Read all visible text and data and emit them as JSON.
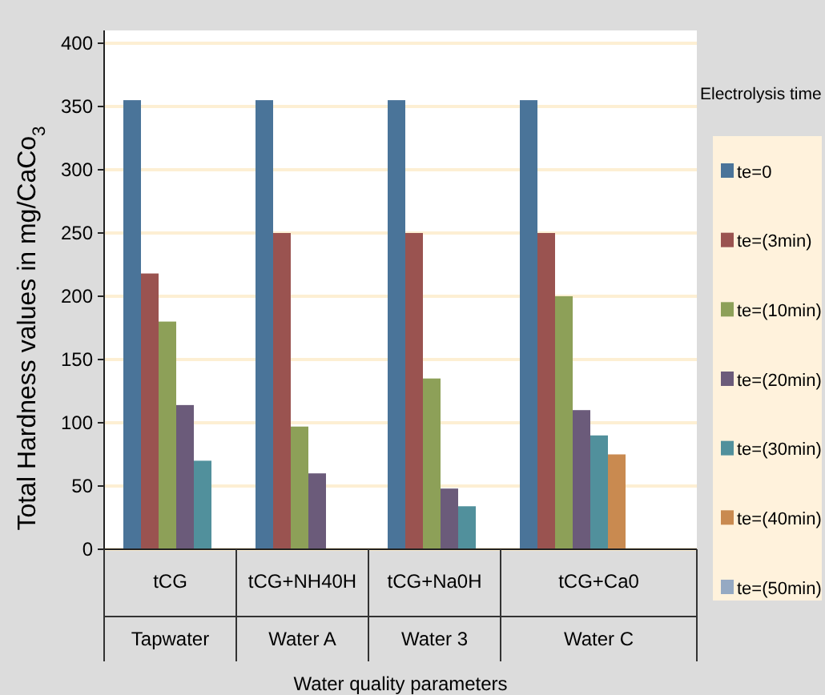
{
  "chart_data": {
    "type": "bar",
    "xlabel": "Water quality parameters",
    "ylabel": "Total Hardness values in mg/CaCo$_{3}$",
    "legend_title": "Electrolysis time",
    "categories": [
      "tCG",
      "tCG+NH40H",
      "tCG+Na0H",
      "tCG+Ca0"
    ],
    "series": [
      {
        "name": "te=0",
        "color": "#4a7499",
        "values": [
          355,
          355,
          355,
          355
        ]
      },
      {
        "name": "te=(3min)",
        "color": "#9a5350",
        "values": [
          218,
          250,
          250,
          250
        ]
      },
      {
        "name": "te=(10min)",
        "color": "#8da058",
        "values": [
          180,
          97,
          135,
          200
        ]
      },
      {
        "name": "te=(20min)",
        "color": "#6b5b7a",
        "values": [
          114,
          60,
          48,
          110
        ]
      },
      {
        "name": "te=(30min)",
        "color": "#51909c",
        "values": [
          70,
          null,
          34,
          90
        ]
      },
      {
        "name": "te=(40min)",
        "color": "#c98a50",
        "values": [
          null,
          null,
          null,
          75
        ]
      },
      {
        "name": "te=(50min)",
        "color": "#95a9c3",
        "values": [
          null,
          null,
          null,
          null
        ]
      }
    ],
    "ylim": [
      0,
      400
    ],
    "yticks": [
      0,
      50,
      100,
      150,
      200,
      250,
      300,
      350,
      400
    ],
    "grid": "y",
    "legend": "right",
    "annotations": [
      "Tapwater",
      "Water A",
      "Water 3",
      "Water C"
    ]
  }
}
